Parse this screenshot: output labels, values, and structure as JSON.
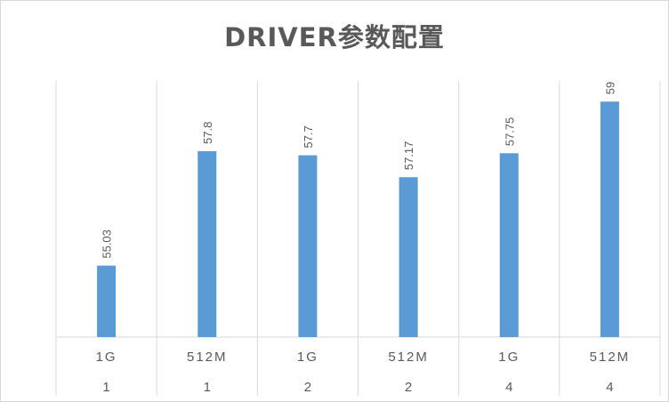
{
  "chart_data": {
    "type": "bar",
    "title": "DRIVER参数配置",
    "categories": [
      [
        "1G",
        "1"
      ],
      [
        "512M",
        "1"
      ],
      [
        "1G",
        "2"
      ],
      [
        "512M",
        "2"
      ],
      [
        "1G",
        "4"
      ],
      [
        "512M",
        "4"
      ]
    ],
    "values": [
      55.03,
      57.8,
      57.7,
      57.17,
      57.75,
      59
    ],
    "value_labels": [
      "55.03",
      "57.8",
      "57.7",
      "57.17",
      "57.75",
      "59"
    ],
    "category_labels_level1": [
      "1G",
      "512M",
      "1G",
      "512M",
      "1G",
      "512M"
    ],
    "category_labels_level2": [
      "1",
      "1",
      "2",
      "2",
      "4",
      "4"
    ],
    "ylim": [
      53.3,
      59.5
    ],
    "grid": "vertical",
    "legend": "none",
    "bar_color": "#5b9bd5",
    "grid_color": "#d9d9d9",
    "text_color": "#595959"
  }
}
